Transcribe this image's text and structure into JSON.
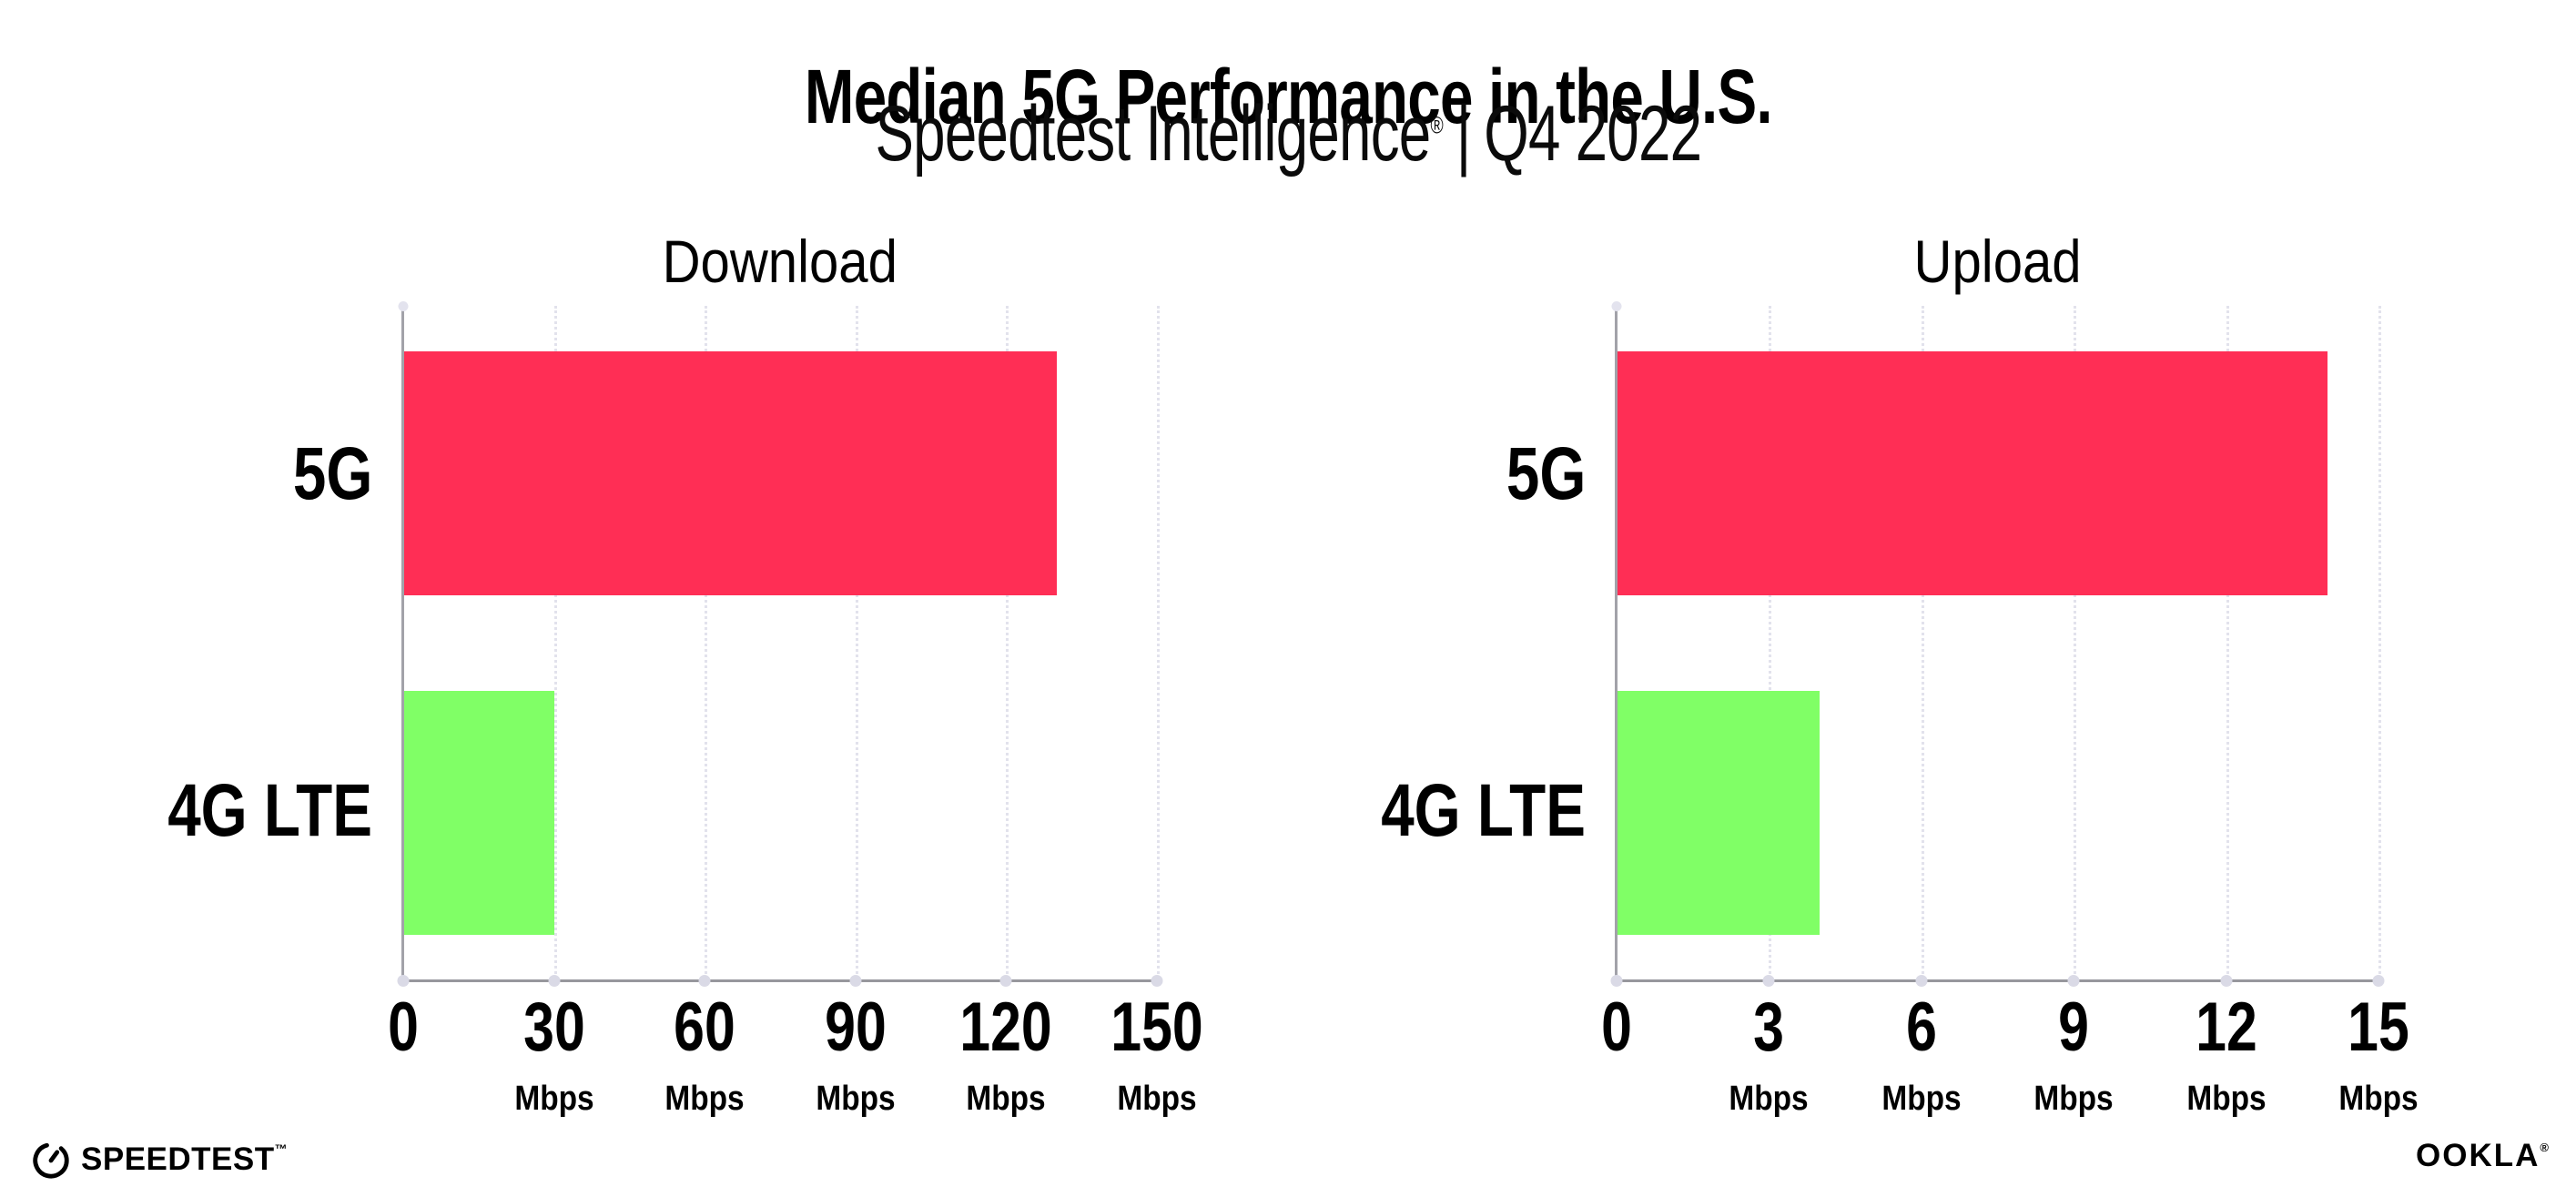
{
  "header": {
    "title": "Median 5G Performance in the U.S.",
    "subtitle": {
      "brand": "Speedtest Intelligence",
      "reg": "®",
      "sep": "|",
      "period": "Q4 2022"
    }
  },
  "chart_data": [
    {
      "type": "bar",
      "orientation": "horizontal",
      "title": "Download",
      "categories": [
        "5G",
        "4G LTE"
      ],
      "values": [
        130,
        30
      ],
      "unit": "Mbps",
      "xlabel": "",
      "ylabel": "",
      "xlim": [
        0,
        150
      ],
      "xticks": [
        0,
        30,
        60,
        90,
        120,
        150
      ],
      "bar_colors": [
        "#FF2E55",
        "#80FF66"
      ],
      "grid": "vertical-dotted",
      "legend": "none"
    },
    {
      "type": "bar",
      "orientation": "horizontal",
      "title": "Upload",
      "categories": [
        "5G",
        "4G LTE"
      ],
      "values": [
        14,
        4
      ],
      "unit": "Mbps",
      "xlabel": "",
      "ylabel": "",
      "xlim": [
        0,
        15
      ],
      "xticks": [
        0,
        3,
        6,
        9,
        12,
        15
      ],
      "bar_colors": [
        "#FF2E55",
        "#80FF66"
      ],
      "grid": "vertical-dotted",
      "legend": "none"
    }
  ],
  "footer": {
    "speedtest": {
      "wordmark": "SPEEDTEST",
      "tm": "™"
    },
    "ookla": {
      "wordmark": "OOKLA",
      "reg": "®"
    }
  },
  "colors": {
    "bar_5g": "#FF2E55",
    "bar_4g_lte": "#80FF66",
    "gridline": "#E2E2EC",
    "axis": "#97979D",
    "tick_dot": "#DADAE6"
  }
}
